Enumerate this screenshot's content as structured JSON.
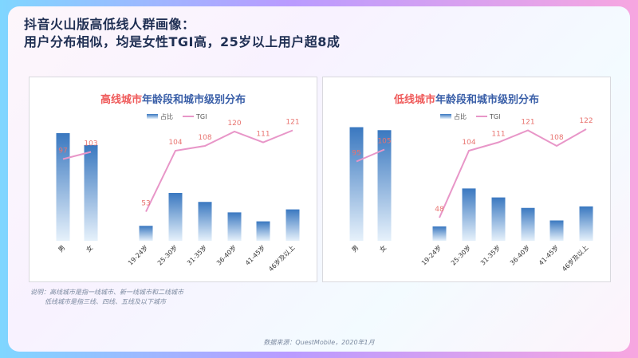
{
  "page": {
    "title_line1": "抖音火山版高低线人群画像：",
    "title_line2": "用户分布相似，均是女性TGI高，25岁以上用户超8成",
    "note_line1": "说明：高线城市是指一线城市、新一线城市和二线城市",
    "note_line2": "低线城市是指三线、四线、五线及以下城市",
    "source": "数据来源：QuestMobile，2020年1月"
  },
  "colors": {
    "bar_top": "#3a78c0",
    "bar_bottom": "#e6f1fb",
    "line": "#e896c8",
    "label_text": "#e8736f",
    "title_dark": "#3a5fa8",
    "title_highlight": "#ef5b5b"
  },
  "chart_data": [
    {
      "type": "bar",
      "title": "高线城市年龄段和城市级别分布",
      "title_highlight": "高线城市",
      "title_rest": "年龄段和城市级别分布",
      "legend": [
        "占比",
        "TGI"
      ],
      "legend_position": "top",
      "groups": [
        {
          "categories": [
            "男",
            "女"
          ],
          "bar_values": [
            0.36,
            0.32
          ],
          "tgi_values": [
            97,
            103
          ]
        },
        {
          "categories": [
            "19-24岁",
            "25-30岁",
            "31-35岁",
            "36-40岁",
            "41-45岁",
            "46岁及以上"
          ],
          "bar_values": [
            0.05,
            0.16,
            0.13,
            0.095,
            0.065,
            0.105
          ],
          "tgi_values": [
            53,
            104,
            108,
            120,
            111,
            121
          ]
        }
      ]
    },
    {
      "type": "bar",
      "title": "低线城市年龄段和城市级别分布",
      "title_highlight": "低线城市",
      "title_rest": "年龄段和城市级别分布",
      "legend": [
        "占比",
        "TGI"
      ],
      "legend_position": "top",
      "groups": [
        {
          "categories": [
            "男",
            "女"
          ],
          "bar_values": [
            0.38,
            0.37
          ],
          "tgi_values": [
            95,
            105
          ]
        },
        {
          "categories": [
            "19-24岁",
            "25-30岁",
            "31-35岁",
            "36-40岁",
            "41-45岁",
            "46岁及以上"
          ],
          "bar_values": [
            0.048,
            0.175,
            0.145,
            0.11,
            0.068,
            0.115
          ],
          "tgi_values": [
            48,
            104,
            111,
            121,
            108,
            122
          ]
        }
      ]
    }
  ]
}
